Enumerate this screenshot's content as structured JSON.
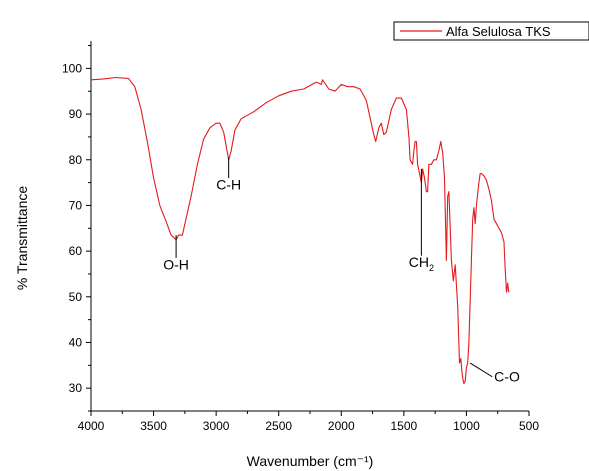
{
  "chart_data": {
    "type": "line",
    "title": "",
    "xlabel": "Wavenumber (cm⁻¹)",
    "ylabel": "% Transmittance",
    "xlim": [
      4000,
      500
    ],
    "ylim": [
      25,
      106
    ],
    "x_ticks": [
      "4000",
      "3500",
      "3000",
      "2500",
      "2000",
      "1500",
      "1000",
      "500"
    ],
    "y_ticks": [
      "30",
      "40",
      "50",
      "60",
      "70",
      "80",
      "90",
      "100"
    ],
    "grid": false,
    "legend_position": "top-right",
    "colors": {
      "series": "#e41a1c",
      "axis": "#000000"
    },
    "series": [
      {
        "name": "Alfa Selulosa TKS",
        "x": [
          4000,
          3900,
          3800,
          3700,
          3650,
          3600,
          3550,
          3500,
          3450,
          3400,
          3360,
          3320,
          3300,
          3270,
          3250,
          3200,
          3150,
          3100,
          3050,
          3000,
          2970,
          2940,
          2920,
          2900,
          2880,
          2850,
          2800,
          2700,
          2600,
          2500,
          2400,
          2300,
          2200,
          2160,
          2150,
          2100,
          2050,
          2000,
          1950,
          1900,
          1850,
          1800,
          1760,
          1740,
          1725,
          1700,
          1680,
          1660,
          1640,
          1600,
          1560,
          1520,
          1480,
          1460,
          1450,
          1430,
          1420,
          1410,
          1400,
          1390,
          1375,
          1360,
          1350,
          1335,
          1320,
          1310,
          1300,
          1280,
          1260,
          1240,
          1220,
          1205,
          1190,
          1175,
          1160,
          1150,
          1140,
          1120,
          1105,
          1090,
          1070,
          1055,
          1045,
          1035,
          1028,
          1020,
          1010,
          1000,
          990,
          980,
          960,
          950,
          940,
          930,
          920,
          900,
          890,
          880,
          860,
          840,
          820,
          800,
          780,
          760,
          740,
          720,
          700,
          690,
          680,
          670,
          665,
          660
        ],
        "y": [
          97.5,
          97.7,
          98,
          97.8,
          96,
          91,
          84,
          76,
          70,
          66.5,
          63.5,
          62.5,
          63.5,
          63.5,
          66,
          72,
          79,
          84.5,
          87,
          88,
          88,
          86,
          83,
          80,
          82,
          86.5,
          89,
          90.5,
          92.5,
          94,
          95,
          95.5,
          97,
          96.5,
          97.5,
          95.5,
          95,
          96.5,
          96,
          96,
          95.5,
          93,
          88,
          85.5,
          84,
          87,
          88,
          85.5,
          86,
          91,
          93.5,
          93.5,
          91,
          85,
          80,
          79,
          82,
          84,
          84,
          79,
          77,
          75,
          78,
          76,
          73,
          73,
          79,
          79,
          80,
          80,
          82,
          84,
          81.5,
          76,
          58,
          72,
          73,
          58,
          53.5,
          57,
          48,
          35.5,
          36.5,
          33.5,
          32,
          31,
          31.5,
          34.5,
          35.5,
          40,
          58,
          67,
          69.5,
          66,
          70,
          75,
          77,
          77,
          76.5,
          75.5,
          73.5,
          71,
          67,
          66,
          65,
          64,
          62,
          56,
          51,
          53,
          51.5,
          51
        ]
      }
    ],
    "annotations": [
      {
        "text": "O-H",
        "x": 3320,
        "y_mark_start": 63.5,
        "y_mark_end": 58.5,
        "label_y": 56
      },
      {
        "text": "C-H",
        "x": 2900,
        "y_mark_start": 80.5,
        "y_mark_end": 76,
        "label_y": 73.5
      },
      {
        "text": "CH",
        "subscript": "2",
        "x": 1360,
        "y_mark_start": 78,
        "y_mark_end": 59,
        "label_y": 56.5
      },
      {
        "text": "C-O",
        "x": 970,
        "y_mark_start": 35.5,
        "y_mark_end": 32.5,
        "label_y": 31.5
      }
    ]
  }
}
